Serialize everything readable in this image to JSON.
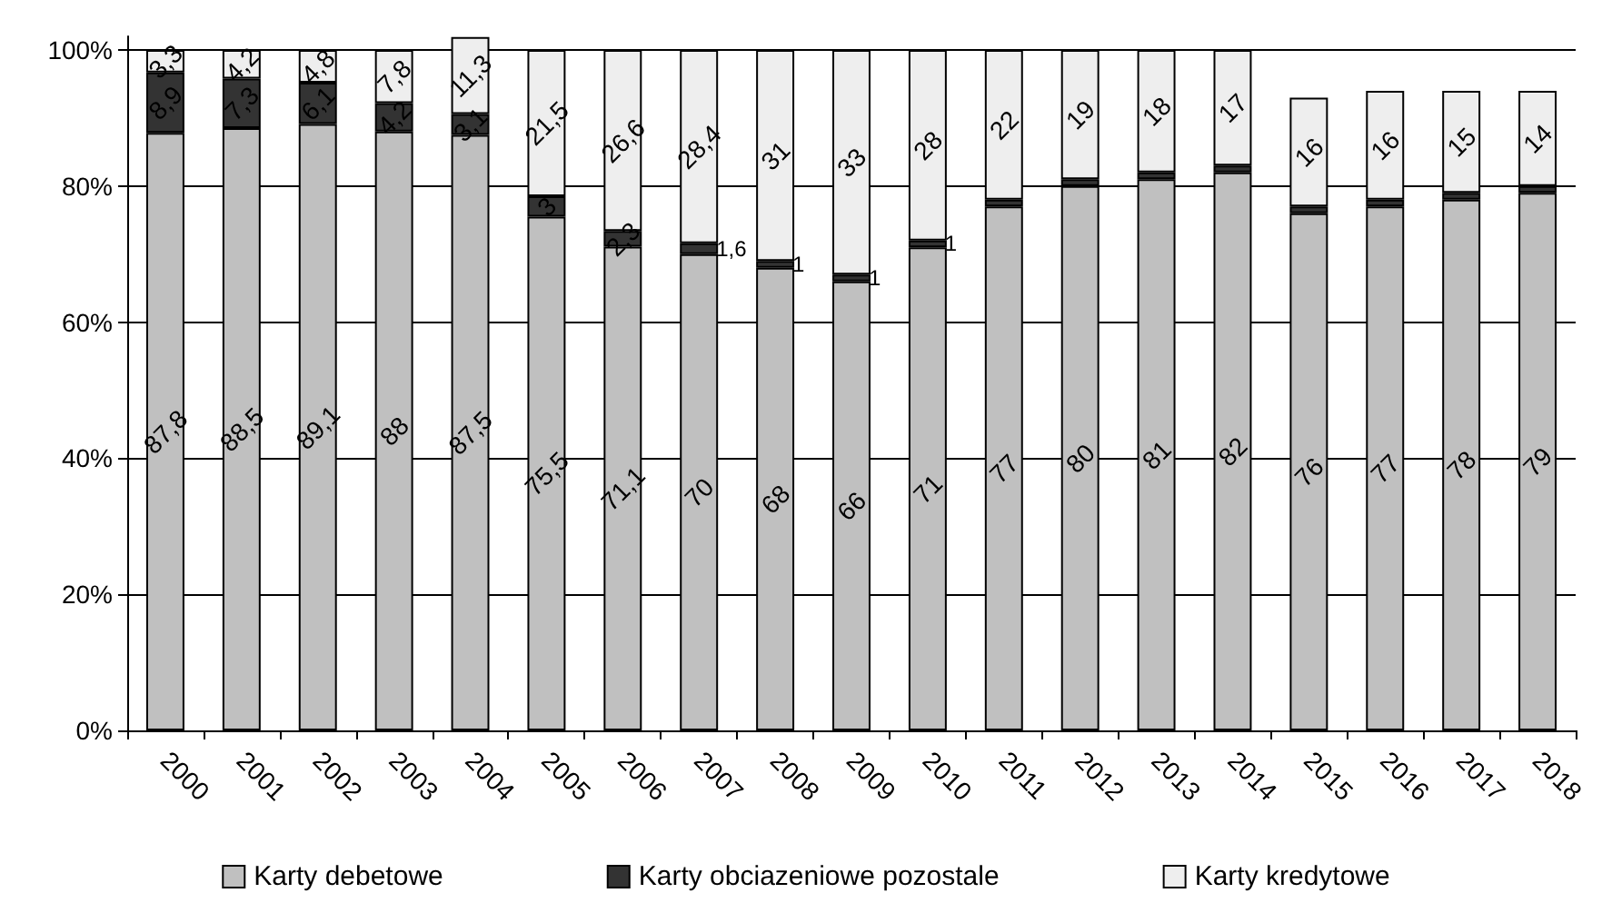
{
  "chart_data": {
    "type": "bar",
    "stacked": true,
    "categories": [
      "2000",
      "2001",
      "2002",
      "2003",
      "2004",
      "2005",
      "2006",
      "2007",
      "2008",
      "2009",
      "2010",
      "2011",
      "2012",
      "2013",
      "2014",
      "2015",
      "2016",
      "2017",
      "2018"
    ],
    "series": [
      {
        "name": "Karty debetowe",
        "color": "#c0c0c0",
        "values": [
          87.8,
          88.5,
          89.1,
          88,
          87.5,
          75.5,
          71.1,
          70,
          68,
          66,
          71,
          77,
          80,
          81,
          82,
          76,
          77,
          78,
          79
        ],
        "value_labels": [
          "87,8",
          "88,5",
          "89,1",
          "88",
          "87,5",
          "75,5",
          "71,1",
          "70",
          "68",
          "66",
          "71",
          "77",
          "80",
          "81",
          "82",
          "76",
          "77",
          "78",
          "79"
        ]
      },
      {
        "name": "Karty obciazeniowe pozostale",
        "color": "#333333",
        "values": [
          8.9,
          7.3,
          6.1,
          4.2,
          3.1,
          3,
          2.3,
          1.6,
          1,
          1,
          1,
          1,
          1,
          1,
          1,
          1,
          1,
          1,
          1
        ],
        "value_labels": [
          "8,9",
          "7,3",
          "6,1",
          "4,2",
          "3,1",
          "3",
          "2,3",
          "1,6",
          "1",
          "1",
          "1",
          null,
          null,
          null,
          null,
          null,
          null,
          null,
          null
        ]
      },
      {
        "name": "Karty kredytowe",
        "color": "#eeeeee",
        "values": [
          3.3,
          4.2,
          4.8,
          7.8,
          11.3,
          21.5,
          26.6,
          28.4,
          31,
          33,
          28,
          22,
          19,
          18,
          17,
          16,
          16,
          15,
          14
        ],
        "value_labels": [
          "3,3",
          "4,2",
          "4,8",
          "7,8",
          "11,3",
          "21,5",
          "26,6",
          "28,4",
          "31",
          "33",
          "28",
          "22",
          "19",
          "18",
          "17",
          "16",
          "16",
          "15",
          "14"
        ]
      }
    ],
    "ylim": [
      0,
      102
    ],
    "yticks": [
      {
        "value": 0,
        "label": "0%"
      },
      {
        "value": 20,
        "label": "20%"
      },
      {
        "value": 40,
        "label": "40%"
      },
      {
        "value": 60,
        "label": "60%"
      },
      {
        "value": 80,
        "label": "80%"
      },
      {
        "value": 100,
        "label": "100%"
      }
    ],
    "grid": "y",
    "legend": "bottom"
  }
}
